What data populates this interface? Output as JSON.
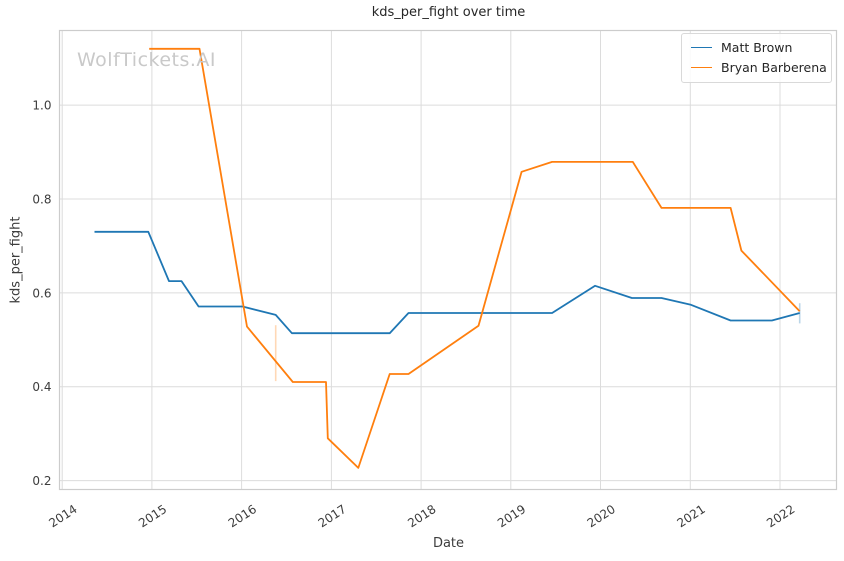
{
  "watermark": "WolfTickets.AI",
  "chart_data": {
    "type": "line",
    "title": "kds_per_fight over time",
    "xlabel": "Date",
    "ylabel": "kds_per_fight",
    "grid": true,
    "legend_position": "upper right",
    "x_axis": {
      "min": 2013.97,
      "max": 2022.63,
      "ticks": [
        2014,
        2015,
        2016,
        2017,
        2018,
        2019,
        2020,
        2021,
        2022
      ],
      "tick_rotation_deg": 33
    },
    "y_axis": {
      "min": 0.181,
      "max": 1.159,
      "ticks": [
        "0.2",
        "0.4",
        "0.6",
        "0.8",
        "1.0"
      ]
    },
    "series": [
      {
        "name": "Matt Brown",
        "color": "#1f77b4",
        "points": [
          [
            2014.36,
            0.73
          ],
          [
            2014.96,
            0.73
          ],
          [
            2015.19,
            0.625
          ],
          [
            2015.33,
            0.625
          ],
          [
            2015.52,
            0.571
          ],
          [
            2016.01,
            0.571
          ],
          [
            2016.38,
            0.553
          ],
          [
            2016.56,
            0.514
          ],
          [
            2017.65,
            0.514
          ],
          [
            2017.86,
            0.557
          ],
          [
            2019.46,
            0.557
          ],
          [
            2019.94,
            0.615
          ],
          [
            2020.35,
            0.589
          ],
          [
            2020.68,
            0.589
          ],
          [
            2021.0,
            0.575
          ],
          [
            2021.45,
            0.541
          ],
          [
            2021.91,
            0.541
          ],
          [
            2022.22,
            0.557
          ]
        ]
      },
      {
        "name": "Bryan Barberena",
        "color": "#ff7f0e",
        "points": [
          [
            2014.97,
            1.12
          ],
          [
            2015.53,
            1.12
          ],
          [
            2016.06,
            0.528
          ],
          [
            2016.57,
            0.41
          ],
          [
            2016.94,
            0.41
          ],
          [
            2016.96,
            0.29
          ],
          [
            2017.3,
            0.227
          ],
          [
            2017.65,
            0.427
          ],
          [
            2017.86,
            0.427
          ],
          [
            2018.64,
            0.53
          ],
          [
            2019.12,
            0.858
          ],
          [
            2019.46,
            0.879
          ],
          [
            2020.36,
            0.879
          ],
          [
            2020.68,
            0.781
          ],
          [
            2021.45,
            0.781
          ],
          [
            2021.57,
            0.69
          ],
          [
            2022.22,
            0.561
          ]
        ]
      }
    ],
    "error_bars": [
      {
        "series": "Bryan Barberena",
        "x": 2016.38,
        "y_low": 0.412,
        "y_high": 0.531,
        "color": "rgba(255,127,14,0.3)"
      },
      {
        "series": "Matt Brown",
        "x": 2022.22,
        "y_low": 0.535,
        "y_high": 0.578,
        "color": "rgba(31,119,180,0.3)"
      }
    ],
    "colors": {
      "grid": "#dcdcdc",
      "spine": "#cccccc",
      "tick_text": "#3d3d3d",
      "title_text": "#262626",
      "watermark_text": "#c9c9c9",
      "background": "#ffffff"
    }
  }
}
